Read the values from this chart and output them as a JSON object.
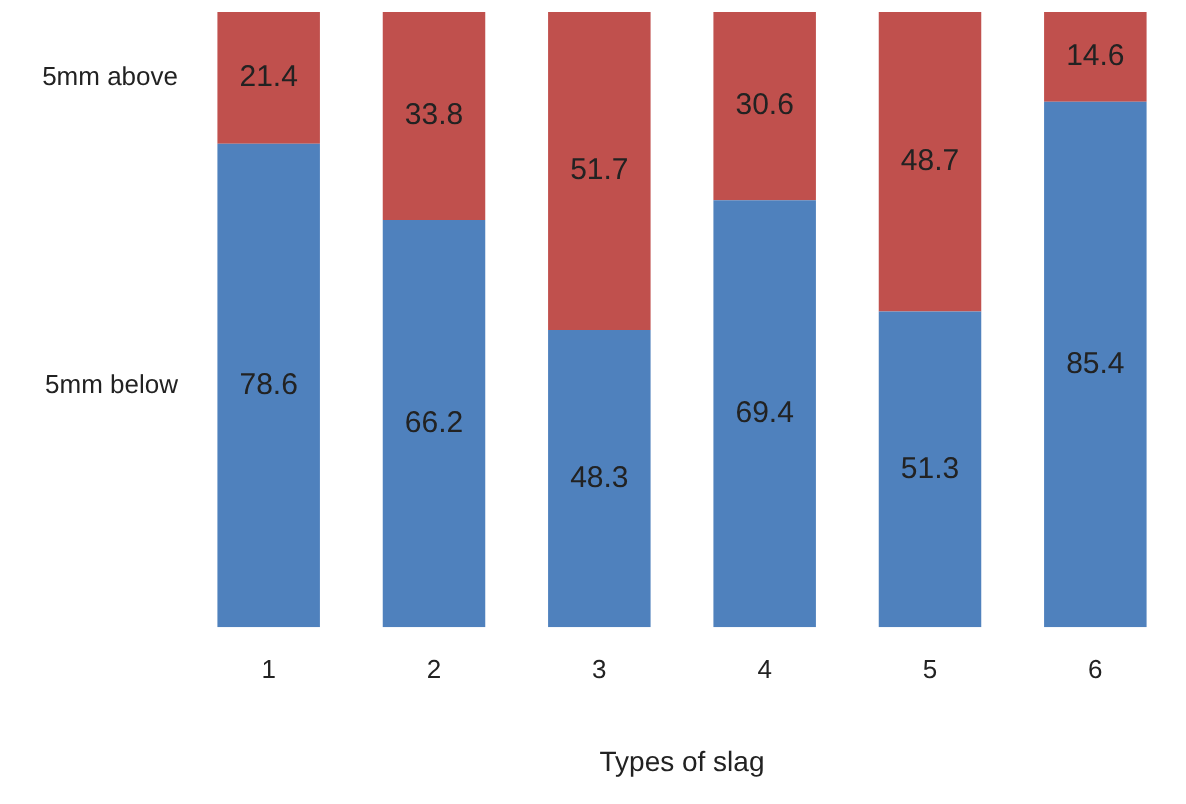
{
  "chart_data": {
    "type": "bar",
    "xlabel": "Types of slag",
    "categories": [
      "1",
      "2",
      "3",
      "4",
      "5",
      "6"
    ],
    "stacked": true,
    "ylim": [
      0,
      100
    ],
    "data_labels": true,
    "grid": false,
    "legend": false,
    "tick_labels": "x",
    "series": [
      {
        "name": "5mm below",
        "color": "#4f81bd",
        "values": [
          78.6,
          66.2,
          48.3,
          69.4,
          51.3,
          85.4
        ]
      },
      {
        "name": "5mm above",
        "color": "#c0504d",
        "values": [
          21.4,
          33.8,
          51.7,
          30.6,
          48.7,
          14.6
        ]
      }
    ]
  }
}
